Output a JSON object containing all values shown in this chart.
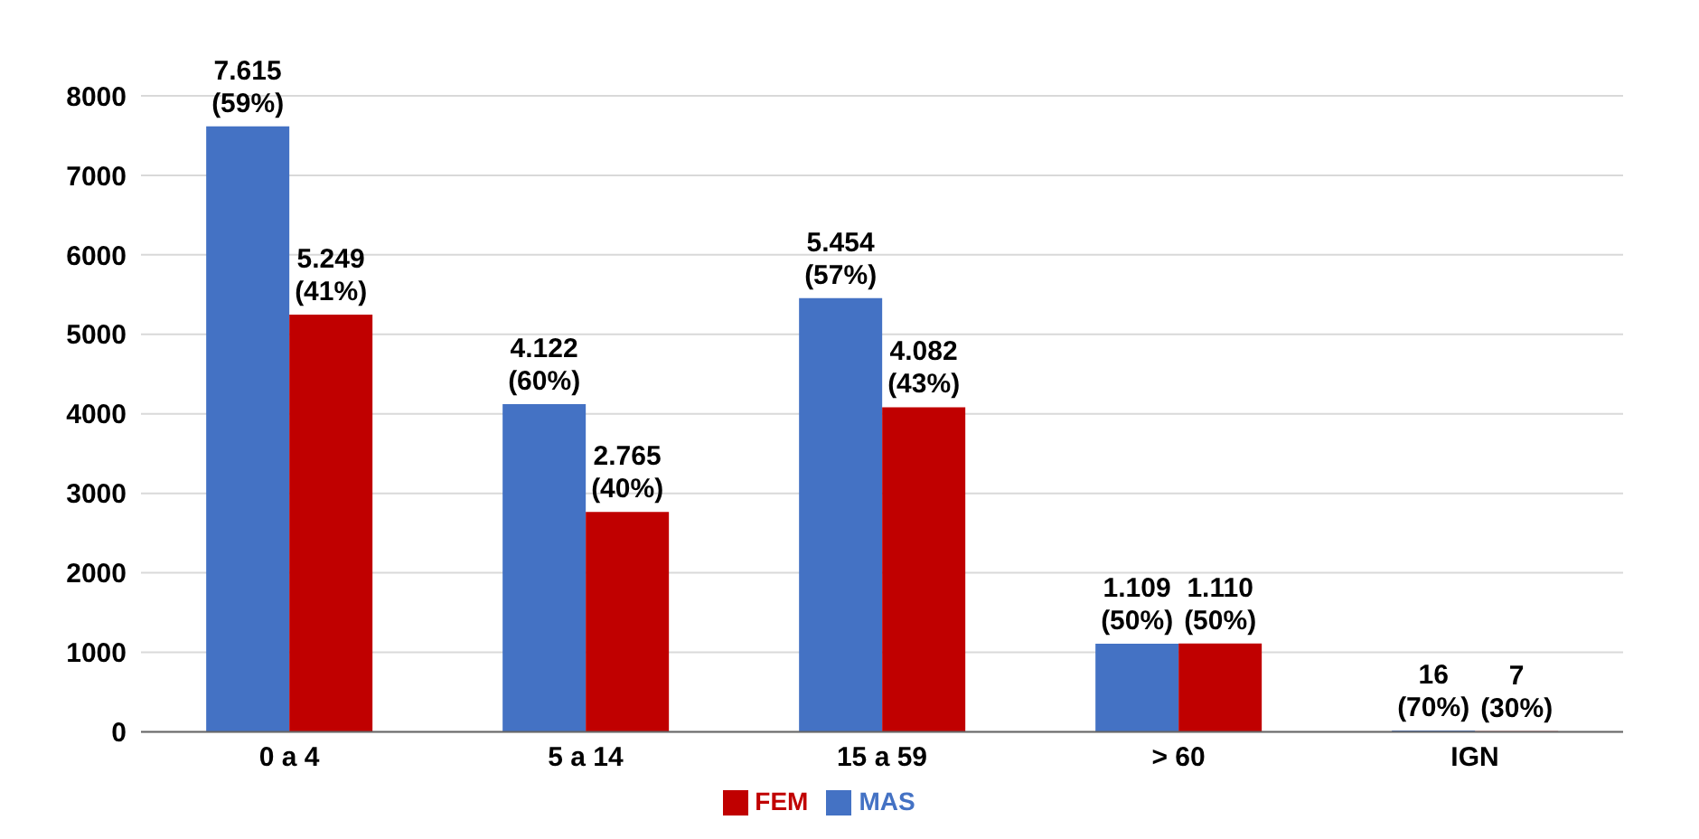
{
  "chart_data": {
    "type": "bar",
    "categories": [
      "0 a 4",
      "5 a 14",
      "15 a 59",
      "> 60",
      "IGN"
    ],
    "series": [
      {
        "name": "MAS",
        "color": "#4472c4",
        "values": [
          7615,
          4122,
          5454,
          1109,
          16
        ],
        "value_labels": [
          "7.615 (59%)",
          "4.122 (60%)",
          "5.454 (57%)",
          "1.109 (50%)",
          "16 (70%)"
        ]
      },
      {
        "name": "FEM",
        "color": "#c00000",
        "values": [
          5249,
          2765,
          4082,
          1110,
          7
        ],
        "value_labels": [
          "5.249 (41%)",
          "2.765 (40%)",
          "4.082 (43%)",
          "1.110 (50%)",
          "7 (30%)"
        ]
      }
    ],
    "ylim": [
      0,
      8000
    ],
    "yticks": [
      0,
      1000,
      2000,
      3000,
      4000,
      5000,
      6000,
      7000,
      8000
    ],
    "grid": "y",
    "legend": "bottom"
  }
}
